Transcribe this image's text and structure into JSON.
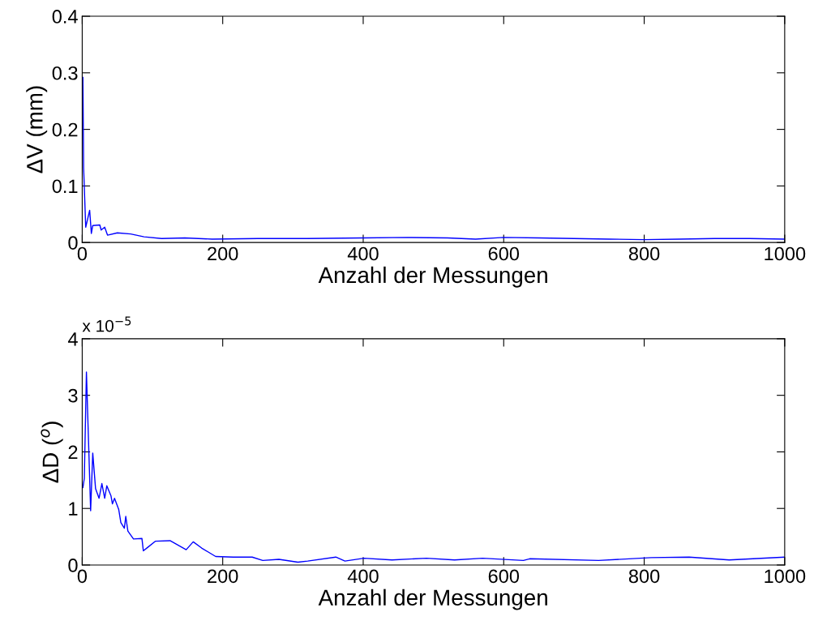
{
  "chart_data": [
    {
      "type": "line",
      "ylabel": "ΔV (mm)",
      "xlabel": "Anzahl der Messungen",
      "xlim": [
        0,
        1000
      ],
      "ylim": [
        0,
        0.4
      ],
      "xticks": [
        0,
        200,
        400,
        600,
        800,
        1000
      ],
      "yticks": [
        0,
        0.1,
        0.2,
        0.3,
        0.4
      ],
      "grid": false,
      "legend": false,
      "series": [
        {
          "color": "#0000ff",
          "x": [
            1,
            2,
            5,
            10.6,
            13,
            15,
            25,
            27,
            32,
            36,
            50,
            69,
            88,
            113,
            146,
            185,
            250,
            320,
            400,
            463,
            520,
            560,
            600,
            650,
            700,
            750,
            800,
            850,
            900,
            950,
            1000
          ],
          "values": [
            0.292,
            0.132,
            0.027,
            0.057,
            0.016,
            0.03,
            0.031,
            0.022,
            0.027,
            0.013,
            0.017,
            0.015,
            0.01,
            0.007,
            0.008,
            0.006,
            0.007,
            0.007,
            0.008,
            0.009,
            0.008,
            0.006,
            0.009,
            0.008,
            0.007,
            0.006,
            0.005,
            0.006,
            0.007,
            0.007,
            0.006
          ]
        }
      ]
    },
    {
      "type": "line",
      "ylabel": "ΔD ($^{o}$)",
      "xlabel": "Anzahl der Messungen",
      "annotations": [
        "x 10$^{−5}$"
      ],
      "xlim": [
        0,
        1000
      ],
      "ylim": [
        0,
        4
      ],
      "xticks": [
        0,
        200,
        400,
        600,
        800,
        1000
      ],
      "yticks": [
        0,
        1,
        2,
        3,
        4
      ],
      "grid": false,
      "legend": false,
      "series": [
        {
          "color": "#0000ff",
          "x": [
            1,
            3,
            6,
            12,
            15,
            19,
            24,
            28,
            32,
            35,
            41,
            43,
            46,
            52,
            55,
            60,
            62,
            65,
            73,
            85,
            87,
            93,
            104,
            125,
            148,
            158,
            170,
            190,
            215,
            242,
            257,
            280,
            307,
            321,
            361,
            374,
            401,
            441,
            490,
            530,
            570,
            628,
            637,
            735,
            810,
            864,
            921,
            1000
          ],
          "values": [
            1.37,
            1.53,
            3.41,
            0.96,
            1.98,
            1.35,
            1.18,
            1.44,
            1.18,
            1.4,
            1.22,
            1.08,
            1.18,
            0.98,
            0.75,
            0.65,
            0.86,
            0.6,
            0.46,
            0.47,
            0.25,
            0.31,
            0.42,
            0.43,
            0.27,
            0.41,
            0.3,
            0.15,
            0.14,
            0.14,
            0.08,
            0.1,
            0.05,
            0.07,
            0.14,
            0.07,
            0.12,
            0.09,
            0.12,
            0.09,
            0.12,
            0.08,
            0.11,
            0.08,
            0.13,
            0.14,
            0.09,
            0.14
          ]
        }
      ]
    }
  ]
}
